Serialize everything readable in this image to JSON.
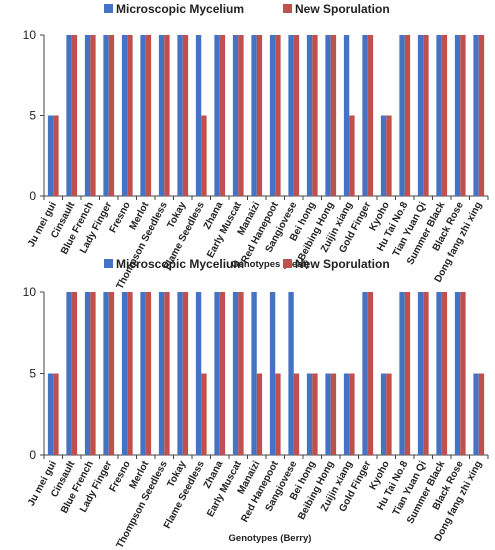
{
  "chart_data": [
    {
      "type": "bar",
      "title": "",
      "xlabel": "Genotypes (Leaf)",
      "ylabel": "",
      "ylim": [
        0,
        10
      ],
      "yticks": [
        0,
        5,
        10
      ],
      "grid": false,
      "legend_position": "top-center",
      "categories": [
        "Ju mei gui",
        "Cinsault",
        "Blue French",
        "Lady Finger",
        "Fresno",
        "Merlot",
        "Thompson Seedless",
        "Tokay",
        "Flame Seedless",
        "Zhana",
        "Early Muscat",
        "Manaizi",
        "Red Hanepoot",
        "Sangiovese",
        "Bei hong",
        "Beibing Hong",
        "Zuijin xiang",
        "Gold Finger",
        "Kyoho",
        "Hu Tai No.8",
        "Tian Yuan Qi",
        "Summer Black",
        "Black Rose",
        "Dong fang zhi xing"
      ],
      "series": [
        {
          "name": "Microscopic Mycelium",
          "color": "#4472C4",
          "values": [
            5,
            10,
            10,
            10,
            10,
            10,
            10,
            10,
            10,
            10,
            10,
            10,
            10,
            10,
            10,
            10,
            10,
            10,
            5,
            10,
            10,
            10,
            10,
            10
          ]
        },
        {
          "name": "New Sporulation",
          "color": "#C0504D",
          "values": [
            5,
            10,
            10,
            10,
            10,
            10,
            10,
            10,
            5,
            10,
            10,
            10,
            10,
            10,
            10,
            10,
            5,
            10,
            5,
            10,
            10,
            10,
            10,
            10
          ]
        }
      ]
    },
    {
      "type": "bar",
      "title": "",
      "xlabel": "Genotypes (Berry)",
      "ylabel": "",
      "ylim": [
        0,
        10
      ],
      "yticks": [
        0,
        5,
        10
      ],
      "grid": false,
      "legend_position": "top-center",
      "categories": [
        "Ju mei gui",
        "Cinsault",
        "Blue French",
        "Lady Finger",
        "Fresno",
        "Merlot",
        "Thompson Seedless",
        "Tokay",
        "Flame Seedless",
        "Zhana",
        "Early Muscat",
        "Manaizi",
        "Red Hanepoot",
        "Sangiovese",
        "Bei hong",
        "Beibing Hong",
        "Zuijin xiang",
        "Gold Finger",
        "Kyoho",
        "Hu Tai No.8",
        "Tian Yuan Qi",
        "Summer Black",
        "Black Rose",
        "Dong fang zhi xing"
      ],
      "series": [
        {
          "name": "Microscopic Mycelium",
          "color": "#4472C4",
          "values": [
            5,
            10,
            10,
            10,
            10,
            10,
            10,
            10,
            10,
            10,
            10,
            10,
            10,
            10,
            5,
            5,
            5,
            10,
            5,
            10,
            10,
            10,
            10,
            5
          ]
        },
        {
          "name": "New Sporulation",
          "color": "#C0504D",
          "values": [
            5,
            10,
            10,
            10,
            10,
            10,
            10,
            10,
            5,
            10,
            10,
            5,
            5,
            5,
            5,
            5,
            5,
            10,
            5,
            10,
            10,
            10,
            10,
            5
          ]
        }
      ]
    }
  ]
}
